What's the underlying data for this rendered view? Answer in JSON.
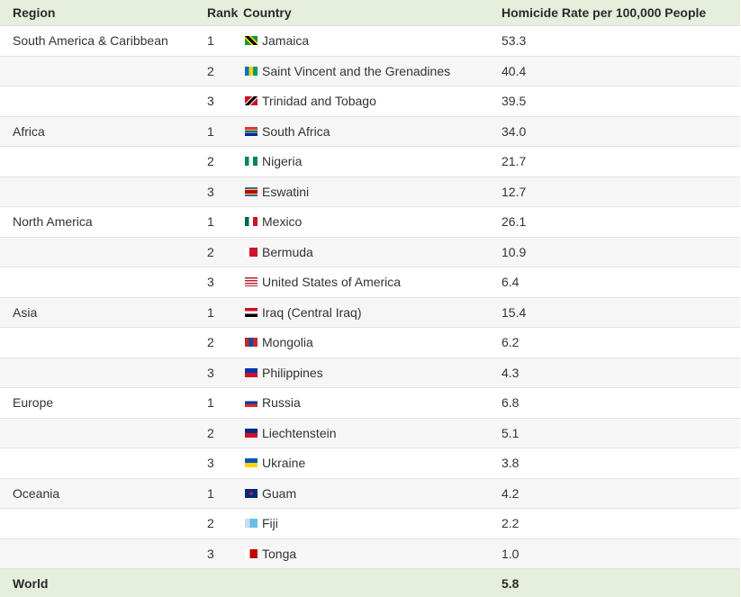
{
  "header": {
    "region": "Region",
    "rank": "Rank",
    "country": "Country",
    "rate": "Homicide Rate per 100,000 People"
  },
  "groups": [
    {
      "region": "South America & Caribbean",
      "rows": [
        {
          "rank": 1,
          "country": "Jamaica",
          "rate": "53.3"
        },
        {
          "rank": 2,
          "country": "Saint Vincent and the Grenadines",
          "rate": "40.4"
        },
        {
          "rank": 3,
          "country": "Trinidad and Tobago",
          "rate": "39.5"
        }
      ]
    },
    {
      "region": "Africa",
      "rows": [
        {
          "rank": 1,
          "country": "South Africa",
          "rate": "34.0"
        },
        {
          "rank": 2,
          "country": "Nigeria",
          "rate": "21.7"
        },
        {
          "rank": 3,
          "country": "Eswatini",
          "rate": "12.7"
        }
      ]
    },
    {
      "region": "North America",
      "rows": [
        {
          "rank": 1,
          "country": "Mexico",
          "rate": "26.1"
        },
        {
          "rank": 2,
          "country": "Bermuda",
          "rate": "10.9"
        },
        {
          "rank": 3,
          "country": "United States of America",
          "rate": "6.4"
        }
      ]
    },
    {
      "region": "Asia",
      "rows": [
        {
          "rank": 1,
          "country": "Iraq (Central Iraq)",
          "rate": "15.4"
        },
        {
          "rank": 2,
          "country": "Mongolia",
          "rate": "6.2"
        },
        {
          "rank": 3,
          "country": "Philippines",
          "rate": "4.3"
        }
      ]
    },
    {
      "region": "Europe",
      "rows": [
        {
          "rank": 1,
          "country": "Russia",
          "rate": "6.8"
        },
        {
          "rank": 2,
          "country": "Liechtenstein",
          "rate": "5.1"
        },
        {
          "rank": 3,
          "country": "Ukraine",
          "rate": "3.8"
        }
      ]
    },
    {
      "region": "Oceania",
      "rows": [
        {
          "rank": 1,
          "country": "Guam",
          "rate": "4.2"
        },
        {
          "rank": 2,
          "country": "Fiji",
          "rate": "2.2"
        },
        {
          "rank": 3,
          "country": "Tonga",
          "rate": "1.0"
        }
      ]
    }
  ],
  "footer": {
    "label": "World",
    "rate": "5.8"
  }
}
